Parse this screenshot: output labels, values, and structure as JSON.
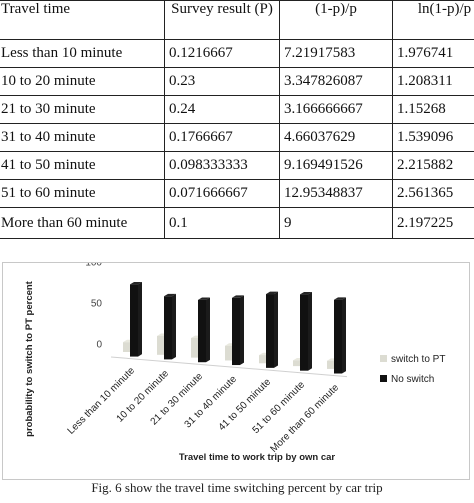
{
  "table": {
    "headers": [
      "Travel time",
      "Survey result (P)",
      "(1-p)/p",
      "ln(1-p)/p"
    ],
    "rows": [
      [
        "Less than 10 minute",
        "0.1216667",
        "7.21917583",
        "1.976741"
      ],
      [
        "10 to 20 minute",
        "0.23",
        "3.347826087",
        "1.208311"
      ],
      [
        "21 to 30 minute",
        "0.24",
        "3.166666667",
        "1.15268"
      ],
      [
        "31 to 40 minute",
        "0.1766667",
        "4.66037629",
        "1.539096"
      ],
      [
        "41 to 50 minute",
        "0.098333333",
        "9.169491526",
        "2.215882"
      ],
      [
        "51 to 60 minute",
        "0.071666667",
        "12.95348837",
        "2.561365"
      ],
      [
        "More than 60 minute",
        "0.1",
        "9",
        "2.197225"
      ]
    ]
  },
  "chart_data": {
    "type": "bar",
    "title": "",
    "xlabel": "Travel time to work trip by own car",
    "ylabel": "probability to switch to PT  percent",
    "ylim": [
      0,
      100
    ],
    "yticks": [
      "0",
      "50",
      "100"
    ],
    "categories": [
      "Less than 10 minute",
      "10 to 20 minute",
      "21 to 30 minute",
      "31 to 40 minute",
      "41 to 50 minute",
      "51 to 60 minute",
      "More than 60 minute"
    ],
    "series": [
      {
        "name": "switch to PT",
        "values": [
          12,
          23,
          24,
          18,
          10,
          7,
          10
        ],
        "color": "#dcdcd2"
      },
      {
        "name": "No switch",
        "values": [
          88,
          77,
          76,
          82,
          90,
          93,
          90
        ],
        "color": "#111111"
      }
    ],
    "legend_position": "right",
    "grid": false
  },
  "caption": "Fig. 6 show the travel time switching percent by car trip"
}
